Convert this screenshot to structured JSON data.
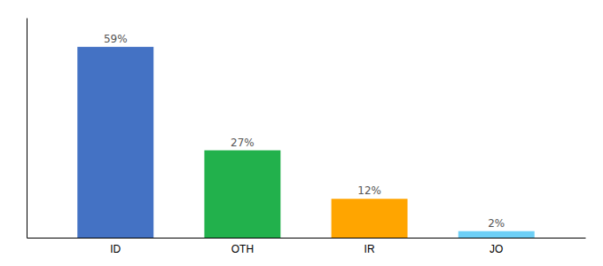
{
  "chart_data": {
    "type": "bar",
    "categories": [
      "ID",
      "OTH",
      "IR",
      "JO"
    ],
    "values": [
      59,
      27,
      12,
      2
    ],
    "value_labels": [
      "59%",
      "27%",
      "12%",
      "2%"
    ],
    "colors": [
      "#4472c4",
      "#22b14c",
      "#ffa500",
      "#6dcff6"
    ],
    "ylim": [
      0,
      68
    ],
    "data_labels": true,
    "tick_labels": "x"
  }
}
